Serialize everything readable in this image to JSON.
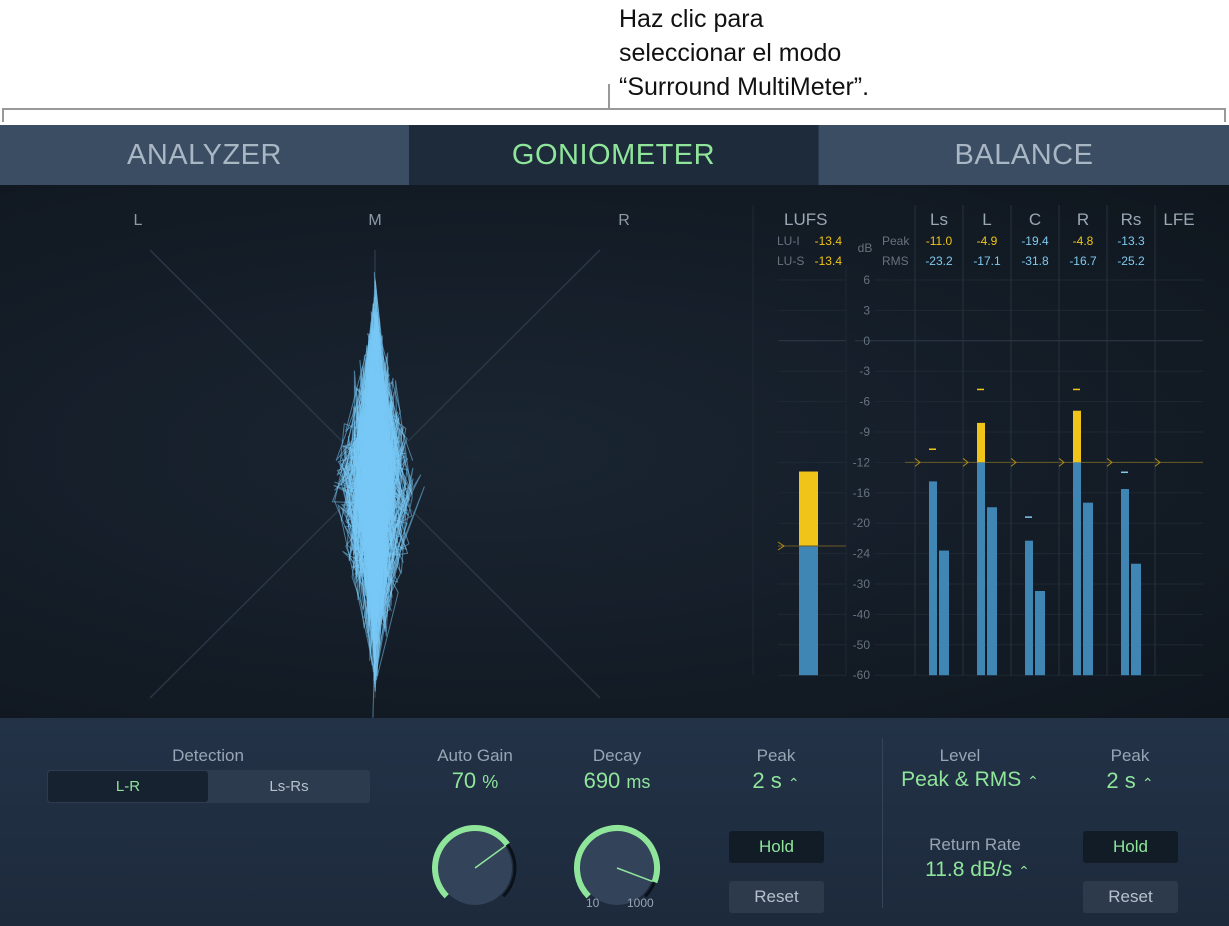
{
  "callout": {
    "lines": [
      "Haz clic para",
      "seleccionar el modo",
      "“Surround MultiMeter”."
    ]
  },
  "tabs": [
    {
      "label": "ANALYZER",
      "active": false
    },
    {
      "label": "GONIOMETER",
      "active": true
    },
    {
      "label": "BALANCE",
      "active": false
    }
  ],
  "goniometer": {
    "labels": {
      "left": "L",
      "mid": "M",
      "right": "R"
    },
    "trace_color": "#79c8f5"
  },
  "loudness": {
    "title": "LUFS",
    "rows": [
      {
        "label": "LU-I",
        "value": "-13.4"
      },
      {
        "label": "LU-S",
        "value": "-13.4"
      }
    ],
    "bar_level_lufs": -13.2,
    "target_lufs": -23
  },
  "meter": {
    "unit": "dB",
    "scale": [
      6,
      3,
      0,
      -3,
      -6,
      -9,
      -12,
      -16,
      -20,
      -24,
      -30,
      -40,
      -50,
      -60
    ],
    "row_labels": {
      "peak": "Peak",
      "rms": "RMS"
    },
    "threshold_db": -12,
    "colors": {
      "normal": "#3f86b4",
      "over": "#f0c419",
      "peak_text_over": "#f0c419",
      "text_normal": "#7fcaf0"
    },
    "channels": [
      {
        "name": "Ls",
        "peak": "-11.0",
        "rms": "-23.2",
        "peak_bar": -14.5,
        "rms_bar": -23.6,
        "hold": -10.7
      },
      {
        "name": "L",
        "peak": "-4.9",
        "rms": "-17.1",
        "peak_bar": -8.1,
        "rms_bar": -17.9,
        "hold": -4.8
      },
      {
        "name": "C",
        "peak": "-19.4",
        "rms": "-31.8",
        "peak_bar": -22.3,
        "rms_bar": -32.3,
        "hold": -19.2
      },
      {
        "name": "R",
        "peak": "-4.8",
        "rms": "-16.7",
        "peak_bar": -6.9,
        "rms_bar": -17.3,
        "hold": -4.8
      },
      {
        "name": "Rs",
        "peak": "-13.3",
        "rms": "-25.2",
        "peak_bar": -15.5,
        "rms_bar": -26.0,
        "hold": -13.3
      },
      {
        "name": "LFE",
        "peak": "",
        "rms": "",
        "peak_bar": null,
        "rms_bar": null,
        "hold": null
      }
    ]
  },
  "controls": {
    "detection": {
      "label": "Detection",
      "options": [
        "L-R",
        "Ls-Rs"
      ],
      "selected": "L-R"
    },
    "auto_gain": {
      "label": "Auto Gain",
      "value": "70",
      "unit": "%",
      "fraction": 0.7
    },
    "decay": {
      "label": "Decay",
      "value": "690",
      "unit": "ms",
      "fraction": 0.91,
      "min": "10",
      "max": "1000"
    },
    "peak1": {
      "label": "Peak",
      "value": "2 s",
      "hold": "Hold",
      "reset": "Reset"
    },
    "level": {
      "label": "Level",
      "value": "Peak & RMS"
    },
    "return_rate": {
      "label": "Return Rate",
      "value": "11.8 dB/s"
    },
    "peak2": {
      "label": "Peak",
      "value": "2 s",
      "hold": "Hold",
      "reset": "Reset"
    }
  }
}
